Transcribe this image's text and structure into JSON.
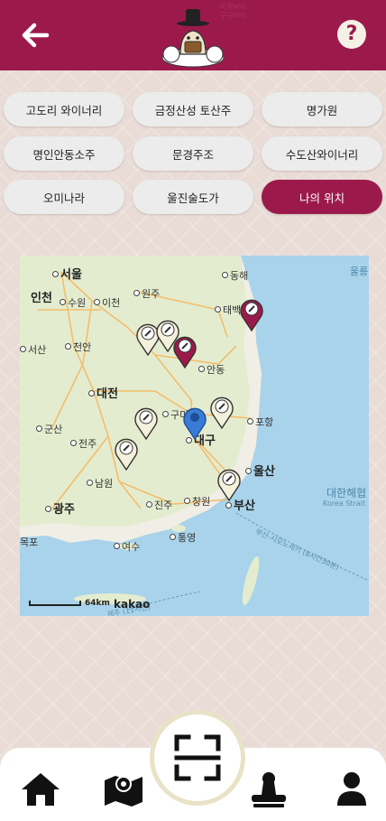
{
  "header": {
    "back_icon": "arrow-left-icon",
    "help_icon": "question-mark-icon",
    "help_label": "?",
    "logo_text_line1": "마왕바라",
    "logo_text_line2": "구구바라",
    "brand_color": "#9c1a4b"
  },
  "chips": [
    {
      "label": "고도리 와이너리"
    },
    {
      "label": "금정산성 토산주"
    },
    {
      "label": "명가원"
    },
    {
      "label": "명인안동소주"
    },
    {
      "label": "문경주조"
    },
    {
      "label": "수도산와이너리"
    },
    {
      "label": "오미나라"
    },
    {
      "label": "울진술도가"
    },
    {
      "label": "나의 위치",
      "active": true
    }
  ],
  "map": {
    "labels": {
      "seoul": "서울",
      "incheon": "인천",
      "suwon": "수원",
      "icheon": "이천",
      "wonju": "원주",
      "donghae": "동해",
      "taebaek": "태백",
      "seosan": "서산",
      "cheonan": "천안",
      "andong": "안동",
      "daejeon": "대전",
      "gumi": "구미",
      "gunsan": "군산",
      "jeonju": "전주",
      "daegu": "대구",
      "pohang": "포항",
      "ulsan": "울산",
      "namwon": "남원",
      "gwangju": "광주",
      "jinju": "진주",
      "changwon": "창원",
      "busan": "부산",
      "mokpo": "목포",
      "yeosu": "여수",
      "tongyeong": "통영",
      "ulleung": "울릉",
      "sea_name": "대한해협",
      "sea_name_en": "Korea Strait",
      "ferry_route": "부산-시모노세키 (8시간30분)",
      "ferry_route2": "제주 (11시간)",
      "scale": "64km",
      "provider": "kakao"
    },
    "pins": [
      {
        "name": "winery-pin",
        "color": "#f4f0dc"
      },
      {
        "name": "winery-pin",
        "color": "#f4f0dc"
      },
      {
        "name": "winery-pin",
        "color": "#9c1a4b"
      },
      {
        "name": "winery-pin",
        "color": "#9c1a4b"
      },
      {
        "name": "winery-pin",
        "color": "#f4f0dc"
      },
      {
        "name": "winery-pin",
        "color": "#f4f0dc"
      },
      {
        "name": "winery-pin",
        "color": "#f4f0dc"
      },
      {
        "name": "winery-pin",
        "color": "#f4f0dc"
      },
      {
        "name": "my-location-pin",
        "color": "#3a7bd5"
      }
    ]
  },
  "nav": {
    "home_icon": "home-icon",
    "map_icon": "map-icon",
    "scan_icon": "qr-scan-icon",
    "stamp_icon": "stamp-icon",
    "user_icon": "user-icon"
  }
}
